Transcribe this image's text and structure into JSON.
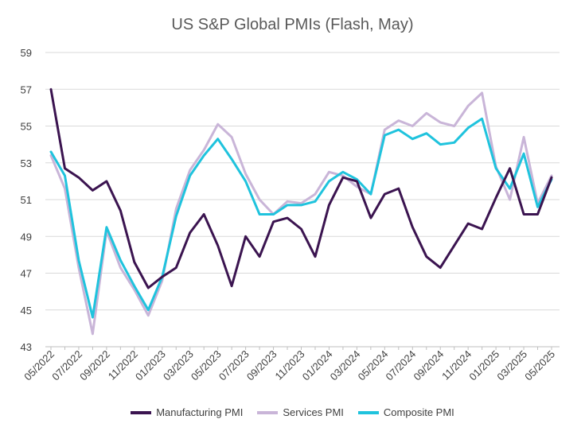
{
  "chart_data": {
    "type": "line",
    "title": "US S&P Global PMIs (Flash, May)",
    "xlabel": "",
    "ylabel": "",
    "ylim": [
      43,
      59
    ],
    "yticks": [
      43,
      45,
      47,
      49,
      51,
      53,
      55,
      57,
      59
    ],
    "grid": "horizontal",
    "legend_position": "bottom",
    "xtick_labels": [
      "05/2022",
      "07/2022",
      "09/2022",
      "11/2022",
      "01/2023",
      "03/2023",
      "05/2023",
      "07/2023",
      "09/2023",
      "11/2023",
      "01/2024",
      "03/2024",
      "05/2024",
      "07/2024",
      "09/2024",
      "11/2024",
      "01/2025",
      "03/2025",
      "05/2025"
    ],
    "x": [
      "05/2022",
      "06/2022",
      "07/2022",
      "08/2022",
      "09/2022",
      "10/2022",
      "11/2022",
      "12/2022",
      "01/2023",
      "02/2023",
      "03/2023",
      "04/2023",
      "05/2023",
      "06/2023",
      "07/2023",
      "08/2023",
      "09/2023",
      "10/2023",
      "11/2023",
      "12/2023",
      "01/2024",
      "02/2024",
      "03/2024",
      "04/2024",
      "05/2024",
      "06/2024",
      "07/2024",
      "08/2024",
      "09/2024",
      "10/2024",
      "11/2024",
      "12/2024",
      "01/2025",
      "02/2025",
      "03/2025",
      "04/2025",
      "05/2025"
    ],
    "series": [
      {
        "name": "Manufacturing PMI",
        "color": "#3b1450",
        "values": [
          57.0,
          52.7,
          52.2,
          51.5,
          52.0,
          50.4,
          47.6,
          46.2,
          46.8,
          47.3,
          49.2,
          50.2,
          48.5,
          46.3,
          49.0,
          47.9,
          49.8,
          50.0,
          49.4,
          47.9,
          50.7,
          52.2,
          52.0,
          50.0,
          51.3,
          51.6,
          49.5,
          47.9,
          47.3,
          48.5,
          49.7,
          49.4,
          51.1,
          52.7,
          50.2,
          50.2,
          52.2
        ]
      },
      {
        "name": "Services PMI",
        "color": "#c9b5d8",
        "values": [
          53.4,
          51.6,
          47.3,
          43.7,
          49.3,
          47.3,
          46.1,
          44.7,
          46.6,
          50.5,
          52.6,
          53.7,
          55.1,
          54.4,
          52.4,
          51.0,
          50.2,
          50.9,
          50.8,
          51.3,
          52.5,
          52.3,
          51.7,
          51.3,
          54.8,
          55.3,
          55.0,
          55.7,
          55.2,
          55.0,
          56.1,
          56.8,
          52.8,
          51.0,
          54.4,
          50.8,
          52.3
        ]
      },
      {
        "name": "Composite PMI",
        "color": "#1fc3dd",
        "values": [
          53.6,
          52.3,
          47.7,
          44.6,
          49.5,
          47.7,
          46.3,
          45.0,
          46.8,
          50.1,
          52.3,
          53.4,
          54.3,
          53.2,
          52.0,
          50.2,
          50.2,
          50.7,
          50.7,
          50.9,
          52.0,
          52.5,
          52.1,
          51.3,
          54.5,
          54.8,
          54.3,
          54.6,
          54.0,
          54.1,
          54.9,
          55.4,
          52.7,
          51.6,
          53.5,
          50.6,
          52.1
        ]
      }
    ]
  }
}
